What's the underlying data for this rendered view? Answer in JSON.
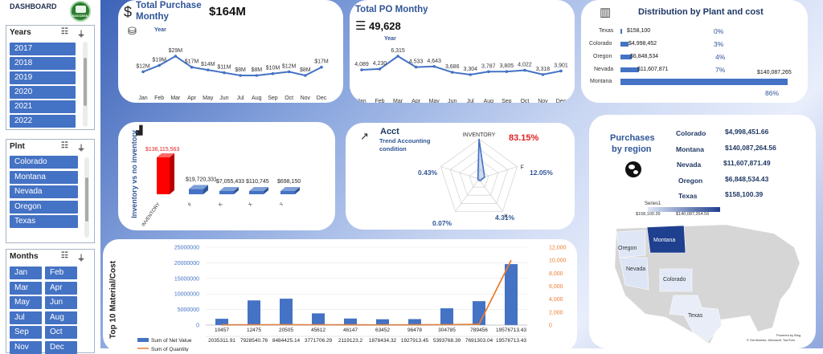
{
  "sidebar": {
    "title": "DASHBOARD",
    "logo_text": "SUCCESS",
    "years": {
      "label": "Years",
      "items": [
        "2017",
        "2018",
        "2019",
        "2020",
        "2021",
        "2022"
      ]
    },
    "plants": {
      "label": "Plnt",
      "items": [
        "Colorado",
        "Montana",
        "Nevada",
        "Oregon",
        "Texas"
      ]
    },
    "months": {
      "label": "Months",
      "items": [
        "Jan",
        "Feb",
        "Mar",
        "Apr",
        "May",
        "Jun",
        "Jul",
        "Aug",
        "Sep",
        "Oct",
        "Nov",
        "Dec"
      ]
    }
  },
  "purchase": {
    "title_line1": "Total Purchase",
    "title_line2": "Monthy",
    "total": "$164M",
    "series_label": "Year",
    "months": [
      "Jan",
      "Feb",
      "Mar",
      "Apr",
      "May",
      "Jun",
      "Jul",
      "Aug",
      "Sep",
      "Oct",
      "Nov",
      "Dec"
    ],
    "labels": [
      "$12M",
      "$19M",
      "$29M",
      "$17M",
      "$14M",
      "$11M",
      "$8M",
      "$8M",
      "$10M",
      "$12M",
      "$8M",
      "$17M"
    ],
    "values": [
      12,
      19,
      29,
      17,
      14,
      11,
      8,
      8,
      10,
      12,
      8,
      17
    ]
  },
  "po": {
    "title": "Total PO Monthy",
    "total": "49,628",
    "series_label": "Year",
    "months": [
      "Jan",
      "Feb",
      "Mar",
      "Apr",
      "May",
      "Jun",
      "Jul",
      "Aug",
      "Sep",
      "Oct",
      "Nov",
      "Dec"
    ],
    "labels": [
      "4,089",
      "4,230",
      "6,315",
      "4,533",
      "4,643",
      "3,686",
      "3,304",
      "3,787",
      "3,805",
      "4,022",
      "3,318",
      "3,901"
    ],
    "values": [
      4089,
      4230,
      6315,
      4533,
      4643,
      3686,
      3304,
      3787,
      3805,
      4022,
      3318,
      3901
    ]
  },
  "distribution": {
    "title": "Distribution by Plant and cost",
    "rows": [
      {
        "plant": "Texas",
        "cost": "$158,100",
        "pct": "0%",
        "value": 158100
      },
      {
        "plant": "Colorado",
        "cost": "$4,998,452",
        "pct": "3%",
        "value": 4998452
      },
      {
        "plant": "Oregon",
        "cost": "$6,848,534",
        "pct": "4%",
        "value": 6848534
      },
      {
        "plant": "Nevada",
        "cost": "$11,607,871",
        "pct": "7%",
        "value": 11607871
      },
      {
        "plant": "Montana",
        "cost": "$140,087,265",
        "pct": "86%",
        "value": 140087265
      }
    ]
  },
  "inventory": {
    "axis_title": "Inventory vs no inventory",
    "categories": [
      "INVENTORY",
      "F",
      "K",
      "X",
      "Y"
    ],
    "labels": [
      "$136,115,563",
      "$19,720,331",
      "$7,055,433",
      "$110,745",
      "$698,150"
    ],
    "values": [
      136115563,
      19720331,
      7055433,
      110745,
      698150
    ]
  },
  "acct": {
    "title": "Acct",
    "subtitle_line1": "Trend Accounting",
    "subtitle_line2": "condition",
    "top_label": "INVENTORY",
    "top_pct": "83.15%",
    "f_label": "F",
    "f_pct": "12.05%",
    "k_label": "K",
    "k_pct": "4.31%",
    "left_pct": "0.43%",
    "bottom_left_pct": "0.07%",
    "values": [
      83.15,
      12.05,
      4.31,
      0.07,
      0.43
    ]
  },
  "region": {
    "title_line1": "Purchases",
    "title_line2": "by region",
    "rows": [
      {
        "plant": "Colorado",
        "value": "$4,998,451.66"
      },
      {
        "plant": "Montana",
        "value": "$140,087,264.56"
      },
      {
        "plant": "Nevada",
        "value": "$11,607,871.49"
      },
      {
        "plant": "Oregon",
        "value": "$6,848,534.43"
      },
      {
        "plant": "Texas",
        "value": "$158,100.39"
      }
    ],
    "legend_series": "Series1",
    "legend_min": "$158,100.39",
    "legend_max": "$140,087,264.56",
    "map_labels": [
      "Montana",
      "Oregon",
      "Nevada",
      "Colorado",
      "Texas"
    ],
    "credit_line1": "Powered by Bing",
    "credit_line2": "© GeoNames, Microsoft, TomTom"
  },
  "top10": {
    "axis_title": "Top 10 Material/Cost",
    "categories": [
      "10457",
      "12475",
      "20505",
      "45612",
      "46147",
      "63452",
      "96478",
      "304785",
      "789456",
      "19576713.43"
    ],
    "values": [
      2035311.91,
      7928540.76,
      8484425.14,
      3771706.29,
      2119123.2,
      1878434.32,
      1927913.45,
      5393768.39,
      7691303.04,
      19576713.43
    ],
    "value_labels": [
      "2035311.91",
      "7928540.76",
      "8484425.14",
      "3771706.29",
      "2119123.2",
      "1878434.32",
      "1927913.45",
      "5393768.39",
      "7691303.04",
      "19576713.43"
    ],
    "line_values": [
      40,
      50,
      60,
      45,
      40,
      35,
      40,
      60,
      120,
      10000
    ],
    "left_ticks": [
      "0",
      "5000000",
      "10000000",
      "15000000",
      "20000000",
      "25000000"
    ],
    "right_ticks": [
      "0",
      "2,000",
      "4,000",
      "6,000",
      "8,000",
      "10,000",
      "12,000"
    ],
    "legend_bar": "Sum of Net Value",
    "legend_line": "Sum of Quantity"
  }
}
